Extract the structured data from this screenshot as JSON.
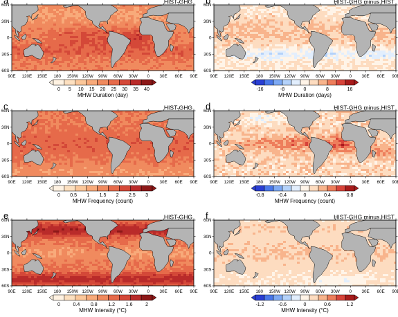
{
  "panels": [
    {
      "letter": "a",
      "title": "HIST-GHG",
      "cb_label": "MHW Duration (day)",
      "ticks": [
        "0",
        "5",
        "10",
        "15",
        "20",
        "25",
        "30",
        "35",
        "40"
      ],
      "palette": "seq",
      "pattern": "dur"
    },
    {
      "letter": "b",
      "title": "HIST-GHG minus HIST",
      "cb_label": "MHW Duration (days)",
      "ticks": [
        "-16",
        "-8",
        "0",
        "8",
        "16"
      ],
      "palette": "div",
      "pattern": "ddur"
    },
    {
      "letter": "c",
      "title": "HIST-GHG",
      "cb_label": "MHW Frequency (count)",
      "ticks": [
        "0",
        "0.5",
        "1",
        "1.5",
        "2",
        "2.5",
        "3"
      ],
      "palette": "seq",
      "pattern": "freq"
    },
    {
      "letter": "d",
      "title": "HIST-GHG minus HIST",
      "cb_label": "MHW Frequency (count)",
      "ticks": [
        "-0.8",
        "-0.4",
        "0",
        "0.4",
        "0.8"
      ],
      "palette": "div",
      "pattern": "dfreq"
    },
    {
      "letter": "e",
      "title": "HIST-GHG",
      "cb_label": "MHW Intensity (°C)",
      "ticks": [
        "0",
        "0.4",
        "0.8",
        "1.2",
        "1.6",
        "2"
      ],
      "palette": "seq",
      "pattern": "int"
    },
    {
      "letter": "f",
      "title": "HIST-GHG minus HIST",
      "cb_label": "MHW Intensity (°C)",
      "ticks": [
        "-1.2",
        "-0.6",
        "0",
        "0.6",
        "1.2"
      ],
      "palette": "div",
      "pattern": "dint"
    }
  ],
  "axes": {
    "lon_ticks": [
      "90E",
      "120E",
      "150E",
      "180",
      "150W",
      "120W",
      "90W",
      "60W",
      "30W",
      "0",
      "30E",
      "60E",
      "90E"
    ],
    "lat_ticks": [
      "60N",
      "30N",
      "0",
      "30S",
      "60S"
    ]
  },
  "colors": {
    "land": "#b4b4b4",
    "seq": [
      "#fff2e2",
      "#fde0c0",
      "#fbc79a",
      "#f8aa7a",
      "#f08a5e",
      "#e66a4a",
      "#d44838",
      "#b92b2a",
      "#8c1818"
    ],
    "div": [
      "#2a3fd4",
      "#4a78ea",
      "#7eaaf4",
      "#b4d2fa",
      "#e2eefd",
      "#fff4e8",
      "#fddcc0",
      "#f8b48c",
      "#ee7e5c",
      "#d8443a",
      "#a81c1c"
    ]
  },
  "chart_data": [
    {
      "type": "heatmap",
      "subtitle": "HIST-GHG",
      "colorbar_label": "MHW Duration (day)",
      "colorbar_range": [
        0,
        40
      ]
    },
    {
      "type": "heatmap",
      "subtitle": "HIST-GHG minus HIST",
      "colorbar_label": "MHW Duration (days)",
      "colorbar_range": [
        -16,
        16
      ]
    },
    {
      "type": "heatmap",
      "subtitle": "HIST-GHG",
      "colorbar_label": "MHW Frequency (count)",
      "colorbar_range": [
        0,
        3
      ]
    },
    {
      "type": "heatmap",
      "subtitle": "HIST-GHG minus HIST",
      "colorbar_label": "MHW Frequency (count)",
      "colorbar_range": [
        -0.8,
        0.8
      ]
    },
    {
      "type": "heatmap",
      "subtitle": "HIST-GHG",
      "colorbar_label": "MHW Intensity (°C)",
      "colorbar_range": [
        0,
        2
      ]
    },
    {
      "type": "heatmap",
      "subtitle": "HIST-GHG minus HIST",
      "colorbar_label": "MHW Intensity (°C)",
      "colorbar_range": [
        -1.2,
        1.2
      ]
    }
  ]
}
